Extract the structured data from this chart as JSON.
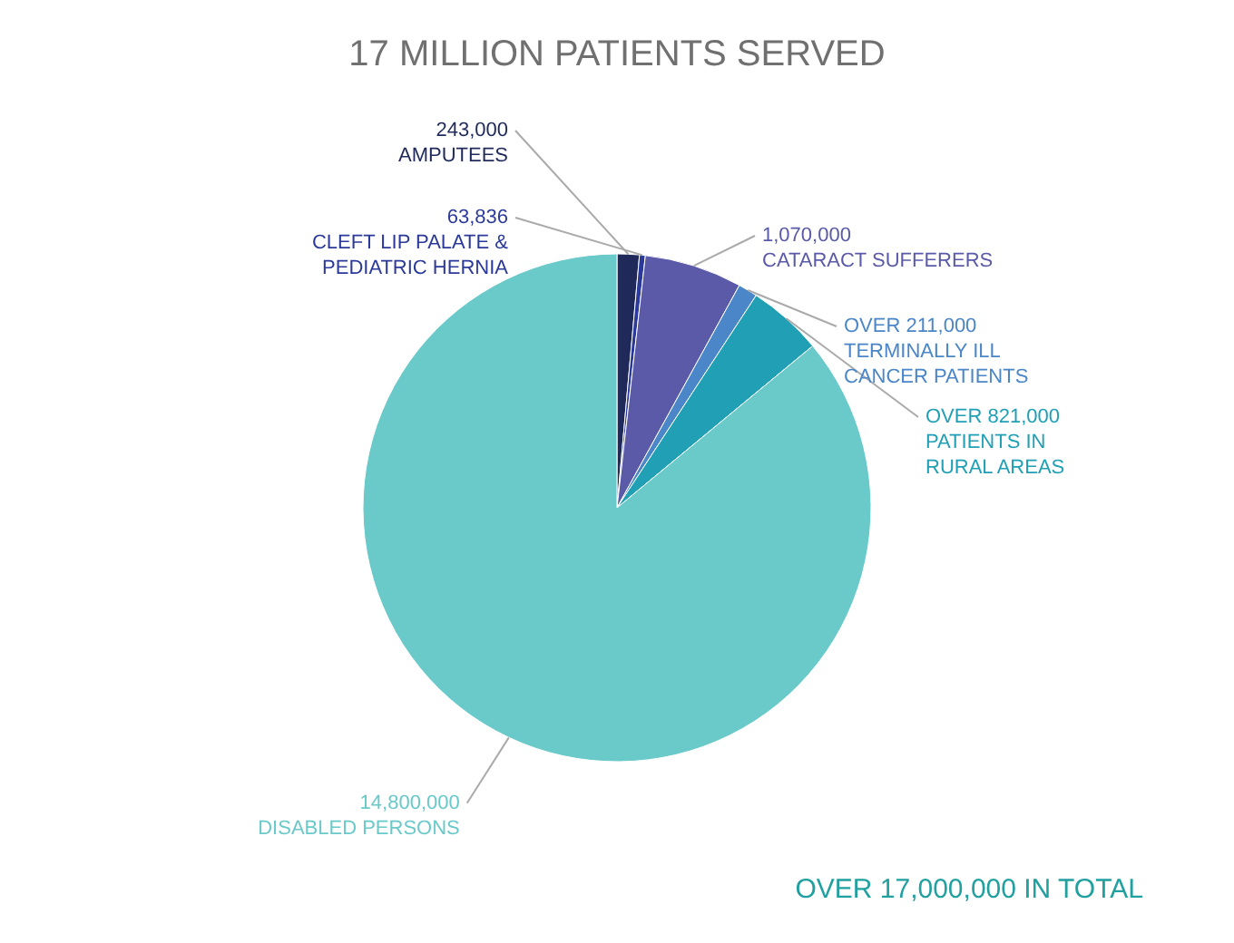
{
  "chart_data": {
    "type": "pie",
    "title": "17 MILLION PATIENTS SERVED",
    "categories": [
      "AMPUTEES",
      "CLEFT LIP PALATE & PEDIATRIC HERNIA",
      "CATARACT SUFFERERS",
      "TERMINALLY ILL CANCER PATIENTS",
      "PATIENTS IN RURAL AREAS",
      "DISABLED PERSONS"
    ],
    "values": [
      243000,
      63836,
      1070000,
      211000,
      821000,
      14800000
    ],
    "value_labels": [
      "243,000",
      "63,836",
      "1,070,000",
      "OVER 211,000",
      "OVER 821,000",
      "14,800,000"
    ],
    "colors": [
      "#1f2a5a",
      "#2b3a9a",
      "#5b5aa8",
      "#4a86c8",
      "#21a0b5",
      "#6ac9c9"
    ],
    "annotations": [
      "OVER 17,000,000 IN TOTAL"
    ]
  }
}
